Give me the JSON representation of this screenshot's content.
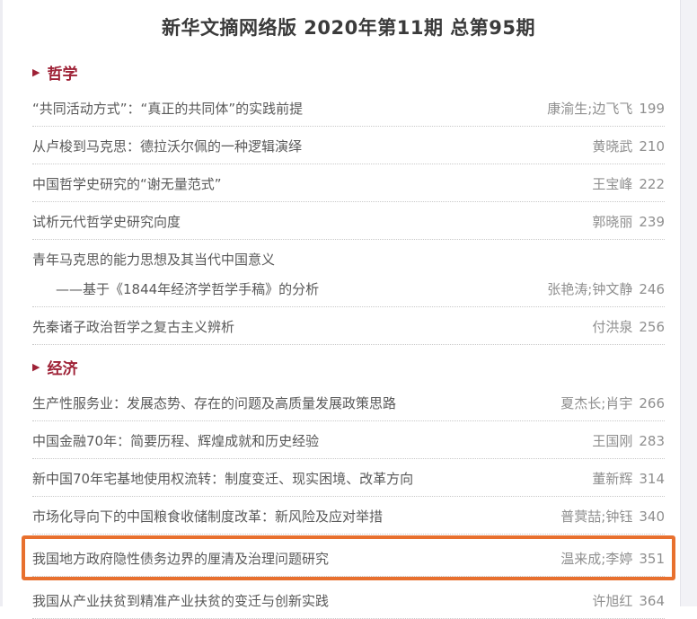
{
  "page": {
    "title": "新华文摘网络版 2020年第11期 总第95期"
  },
  "icons": {
    "section_bullet": "▶"
  },
  "colors": {
    "section_red": "#9e2136",
    "highlight_orange": "#e8702e"
  },
  "sections": [
    {
      "label": "哲学",
      "articles": [
        {
          "title": "“共同活动方式”：“真正的共同体”的实践前提",
          "authors": "康渝生;边飞飞",
          "page": "199"
        },
        {
          "title": "从卢梭到马克思：德拉沃尔佩的一种逻辑演绎",
          "authors": "黄晓武",
          "page": "210"
        },
        {
          "title": "中国哲学史研究的“谢无量范式”",
          "authors": "王宝峰",
          "page": "222"
        },
        {
          "title": "试析元代哲学史研究向度",
          "authors": "郭晓丽",
          "page": "239"
        },
        {
          "title": "青年马克思的能力思想及其当代中国意义",
          "subtitle": "——基于《1844年经济学哲学手稿》的分析",
          "authors": "张艳涛;钟文静",
          "page": "246"
        },
        {
          "title": "先秦诸子政治哲学之复古主义辨析",
          "authors": "付洪泉",
          "page": "256"
        }
      ]
    },
    {
      "label": "经济",
      "articles": [
        {
          "title": "生产性服务业：发展态势、存在的问题及高质量发展政策思路",
          "authors": "夏杰长;肖宇",
          "page": "266"
        },
        {
          "title": "中国金融70年：简要历程、辉煌成就和历史经验",
          "authors": "王国刚",
          "page": "283"
        },
        {
          "title": "新中国70年宅基地使用权流转：制度变迁、现实困境、改革方向",
          "authors": "董新辉",
          "page": "314"
        },
        {
          "title": "市场化导向下的中国粮食收储制度改革：新风险及应对举措",
          "authors": "普蓂喆;钟钰",
          "page": "340"
        },
        {
          "title": "我国地方政府隐性债务边界的厘清及治理问题研究",
          "authors": "温来成;李婷",
          "page": "351",
          "highlighted": true
        },
        {
          "title": "我国从产业扶贫到精准产业扶贫的变迁与创新实践",
          "authors": "许旭红",
          "page": "364"
        }
      ]
    }
  ]
}
